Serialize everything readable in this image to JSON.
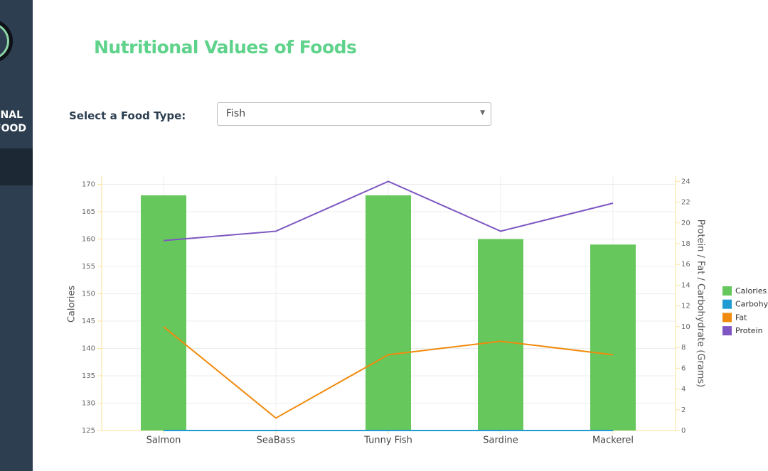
{
  "sidebar": {
    "lines": [
      "ONAL",
      "FOOD"
    ]
  },
  "page": {
    "title": "Nutritional Values of Foods",
    "select_label": "Select a Food Type:",
    "select_value": "Fish"
  },
  "chart_data": {
    "type": "bar-line",
    "categories": [
      "Salmon",
      "SeaBass",
      "Tunny Fish",
      "Sardine",
      "Mackerel"
    ],
    "ylabel": "Calories",
    "y2label": "Protein / Fat / Carbohydrate (Grams)",
    "ylim": [
      125,
      171.5
    ],
    "yticks": [
      125,
      130,
      135,
      140,
      145,
      150,
      155,
      160,
      165,
      170
    ],
    "y2lim": [
      0,
      24.5
    ],
    "y2ticks": [
      0,
      2,
      4,
      6,
      8,
      10,
      12,
      14,
      16,
      18,
      20,
      22,
      24
    ],
    "grid": true,
    "series": [
      {
        "name": "Calories",
        "color": "#66c75d",
        "kind": "bar",
        "values": [
          168,
          null,
          168,
          160,
          159
        ]
      },
      {
        "name": "Carbohydrate",
        "color": "#1f9bd1",
        "kind": "line",
        "axis": "y2",
        "values": [
          0,
          0,
          0,
          0,
          0
        ]
      },
      {
        "name": "Fat",
        "color": "#f08a0c",
        "kind": "line",
        "axis": "y2",
        "values": [
          10.0,
          1.2,
          7.3,
          8.6,
          7.3
        ]
      },
      {
        "name": "Protein",
        "color": "#7e57c2",
        "kind": "line",
        "axis": "y2",
        "values": [
          18.3,
          19.2,
          24.0,
          19.2,
          21.9
        ]
      }
    ]
  }
}
